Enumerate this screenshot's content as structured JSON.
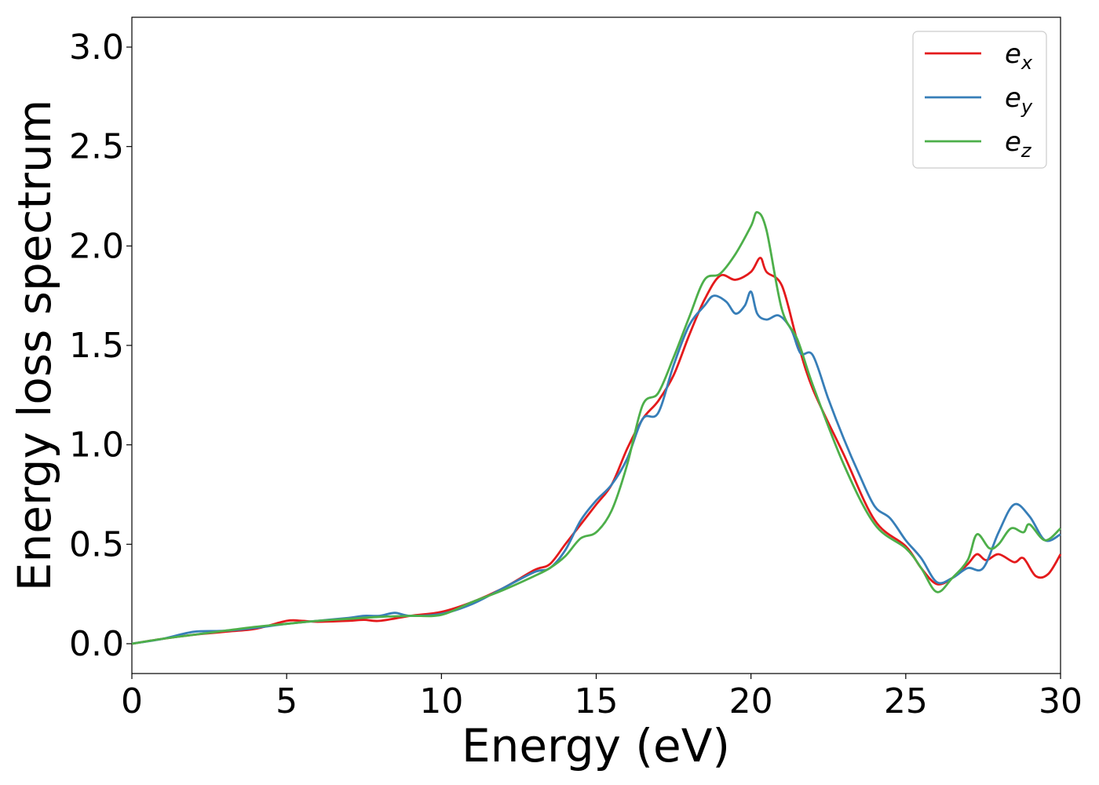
{
  "chart_data": {
    "type": "line",
    "xlabel": "Energy (eV)",
    "ylabel": "Energy loss spectrum",
    "xlim": [
      0,
      30
    ],
    "ylim": [
      -0.15,
      3.15
    ],
    "xticks": [
      0,
      5,
      10,
      15,
      20,
      25,
      30
    ],
    "xtick_labels": [
      "0",
      "5",
      "10",
      "15",
      "20",
      "25",
      "30"
    ],
    "yticks": [
      0.0,
      0.5,
      1.0,
      1.5,
      2.0,
      2.5,
      3.0
    ],
    "ytick_labels": [
      "0.0",
      "0.5",
      "1.0",
      "1.5",
      "2.0",
      "2.5",
      "3.0"
    ],
    "grid": false,
    "legend_position": "top-right",
    "series": [
      {
        "name": "e",
        "subscript": "x",
        "color": "#e41a1c",
        "points": [
          [
            0,
            0.0
          ],
          [
            1,
            0.025
          ],
          [
            2,
            0.045
          ],
          [
            3,
            0.06
          ],
          [
            4,
            0.075
          ],
          [
            5,
            0.115
          ],
          [
            5.5,
            0.115
          ],
          [
            6,
            0.11
          ],
          [
            7,
            0.115
          ],
          [
            7.5,
            0.12
          ],
          [
            8,
            0.115
          ],
          [
            9,
            0.14
          ],
          [
            10,
            0.16
          ],
          [
            11,
            0.21
          ],
          [
            12,
            0.28
          ],
          [
            13,
            0.37
          ],
          [
            13.5,
            0.4
          ],
          [
            14,
            0.5
          ],
          [
            14.5,
            0.6
          ],
          [
            15,
            0.7
          ],
          [
            15.5,
            0.8
          ],
          [
            16,
            0.98
          ],
          [
            16.5,
            1.13
          ],
          [
            17,
            1.22
          ],
          [
            17.5,
            1.35
          ],
          [
            18,
            1.55
          ],
          [
            18.5,
            1.73
          ],
          [
            19,
            1.85
          ],
          [
            19.5,
            1.83
          ],
          [
            20,
            1.87
          ],
          [
            20.3,
            1.94
          ],
          [
            20.5,
            1.87
          ],
          [
            21,
            1.8
          ],
          [
            21.5,
            1.52
          ],
          [
            22,
            1.28
          ],
          [
            23,
            0.95
          ],
          [
            24,
            0.62
          ],
          [
            25,
            0.49
          ],
          [
            25.5,
            0.38
          ],
          [
            26,
            0.3
          ],
          [
            26.5,
            0.33
          ],
          [
            27,
            0.4
          ],
          [
            27.3,
            0.45
          ],
          [
            27.6,
            0.42
          ],
          [
            28,
            0.45
          ],
          [
            28.5,
            0.41
          ],
          [
            28.8,
            0.43
          ],
          [
            29.2,
            0.34
          ],
          [
            29.6,
            0.35
          ],
          [
            30,
            0.45
          ]
        ]
      },
      {
        "name": "e",
        "subscript": "y",
        "color": "#377eb8",
        "points": [
          [
            0,
            0.0
          ],
          [
            1,
            0.025
          ],
          [
            2,
            0.06
          ],
          [
            3,
            0.065
          ],
          [
            4,
            0.08
          ],
          [
            5,
            0.1
          ],
          [
            6,
            0.115
          ],
          [
            7,
            0.13
          ],
          [
            7.5,
            0.14
          ],
          [
            8,
            0.14
          ],
          [
            8.5,
            0.155
          ],
          [
            9,
            0.14
          ],
          [
            10,
            0.15
          ],
          [
            11,
            0.2
          ],
          [
            12,
            0.28
          ],
          [
            13,
            0.36
          ],
          [
            13.5,
            0.38
          ],
          [
            14,
            0.47
          ],
          [
            14.5,
            0.62
          ],
          [
            15,
            0.72
          ],
          [
            15.5,
            0.8
          ],
          [
            16,
            0.93
          ],
          [
            16.5,
            1.13
          ],
          [
            17,
            1.16
          ],
          [
            17.5,
            1.4
          ],
          [
            18,
            1.6
          ],
          [
            18.5,
            1.7
          ],
          [
            18.8,
            1.75
          ],
          [
            19.2,
            1.72
          ],
          [
            19.5,
            1.66
          ],
          [
            19.8,
            1.7
          ],
          [
            20,
            1.77
          ],
          [
            20.2,
            1.66
          ],
          [
            20.5,
            1.63
          ],
          [
            20.9,
            1.65
          ],
          [
            21.3,
            1.58
          ],
          [
            21.6,
            1.46
          ],
          [
            22,
            1.45
          ],
          [
            22.5,
            1.23
          ],
          [
            23,
            1.03
          ],
          [
            23.5,
            0.85
          ],
          [
            24,
            0.69
          ],
          [
            24.5,
            0.63
          ],
          [
            25,
            0.52
          ],
          [
            25.5,
            0.43
          ],
          [
            26,
            0.31
          ],
          [
            26.5,
            0.33
          ],
          [
            27,
            0.38
          ],
          [
            27.5,
            0.38
          ],
          [
            28,
            0.56
          ],
          [
            28.5,
            0.7
          ],
          [
            29,
            0.64
          ],
          [
            29.5,
            0.52
          ],
          [
            30,
            0.55
          ]
        ]
      },
      {
        "name": "e",
        "subscript": "z",
        "color": "#4daf4a",
        "points": [
          [
            0,
            0.0
          ],
          [
            1,
            0.025
          ],
          [
            2,
            0.045
          ],
          [
            3,
            0.065
          ],
          [
            4,
            0.085
          ],
          [
            5,
            0.1
          ],
          [
            6,
            0.115
          ],
          [
            7,
            0.125
          ],
          [
            8,
            0.135
          ],
          [
            9,
            0.14
          ],
          [
            10,
            0.145
          ],
          [
            11,
            0.21
          ],
          [
            12,
            0.27
          ],
          [
            13,
            0.34
          ],
          [
            13.5,
            0.38
          ],
          [
            14,
            0.44
          ],
          [
            14.5,
            0.53
          ],
          [
            15,
            0.56
          ],
          [
            15.5,
            0.67
          ],
          [
            16,
            0.9
          ],
          [
            16.5,
            1.2
          ],
          [
            17,
            1.26
          ],
          [
            17.5,
            1.44
          ],
          [
            18,
            1.64
          ],
          [
            18.5,
            1.83
          ],
          [
            19,
            1.86
          ],
          [
            19.5,
            1.96
          ],
          [
            20,
            2.1
          ],
          [
            20.2,
            2.17
          ],
          [
            20.5,
            2.08
          ],
          [
            21,
            1.68
          ],
          [
            21.5,
            1.53
          ],
          [
            22,
            1.3
          ],
          [
            23,
            0.9
          ],
          [
            24,
            0.6
          ],
          [
            25,
            0.48
          ],
          [
            25.5,
            0.38
          ],
          [
            26,
            0.26
          ],
          [
            26.5,
            0.33
          ],
          [
            27,
            0.42
          ],
          [
            27.3,
            0.55
          ],
          [
            27.7,
            0.48
          ],
          [
            28,
            0.5
          ],
          [
            28.4,
            0.58
          ],
          [
            28.8,
            0.56
          ],
          [
            29,
            0.6
          ],
          [
            29.5,
            0.52
          ],
          [
            30,
            0.58
          ]
        ]
      }
    ]
  }
}
